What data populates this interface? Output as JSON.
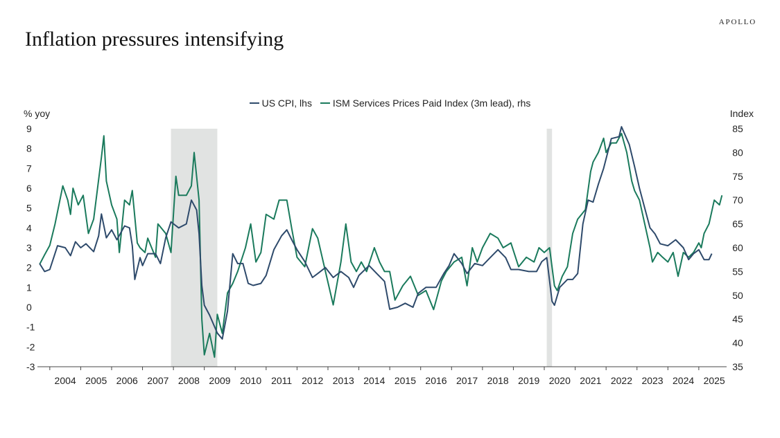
{
  "brand": "APOLLO",
  "title": "Inflation pressures intensifying",
  "chart_data": {
    "type": "line",
    "title": "Inflation pressures intensifying",
    "left_axis": {
      "label": "% yoy",
      "min": -3,
      "max": 9,
      "ticks": [
        -3,
        -2,
        -1,
        0,
        1,
        2,
        3,
        4,
        5,
        6,
        7,
        8,
        9
      ]
    },
    "right_axis": {
      "label": "Index",
      "min": 35,
      "max": 85,
      "ticks": [
        35,
        40,
        45,
        50,
        55,
        60,
        65,
        70,
        75,
        80,
        85
      ]
    },
    "x_axis": {
      "min": 2003.6,
      "max": 2025.9,
      "tick_labels": [
        "2004",
        "2005",
        "2006",
        "2007",
        "2008",
        "2009",
        "2010",
        "2011",
        "2012",
        "2013",
        "2014",
        "2015",
        "2016",
        "2017",
        "2018",
        "2019",
        "2020",
        "2021",
        "2022",
        "2023",
        "2024",
        "2025"
      ]
    },
    "grid": false,
    "legend_position": "top-center",
    "recessions": [
      {
        "start": 2007.92,
        "end": 2009.42
      },
      {
        "start": 2020.08,
        "end": 2020.25
      }
    ],
    "series": [
      {
        "name": "US CPI, lhs",
        "axis": "left",
        "color": "#2e4a6b",
        "points": [
          [
            2003.67,
            2.2
          ],
          [
            2003.83,
            1.8
          ],
          [
            2004.0,
            1.9
          ],
          [
            2004.25,
            3.1
          ],
          [
            2004.5,
            3.0
          ],
          [
            2004.67,
            2.6
          ],
          [
            2004.83,
            3.3
          ],
          [
            2005.0,
            3.0
          ],
          [
            2005.17,
            3.2
          ],
          [
            2005.42,
            2.8
          ],
          [
            2005.58,
            3.6
          ],
          [
            2005.67,
            4.7
          ],
          [
            2005.83,
            3.5
          ],
          [
            2006.0,
            3.9
          ],
          [
            2006.17,
            3.4
          ],
          [
            2006.42,
            4.1
          ],
          [
            2006.58,
            4.0
          ],
          [
            2006.67,
            3.1
          ],
          [
            2006.75,
            1.4
          ],
          [
            2006.92,
            2.5
          ],
          [
            2007.0,
            2.1
          ],
          [
            2007.17,
            2.7
          ],
          [
            2007.42,
            2.7
          ],
          [
            2007.58,
            2.2
          ],
          [
            2007.75,
            3.5
          ],
          [
            2007.92,
            4.3
          ],
          [
            2008.17,
            4.0
          ],
          [
            2008.42,
            4.2
          ],
          [
            2008.58,
            5.4
          ],
          [
            2008.75,
            4.9
          ],
          [
            2008.83,
            3.7
          ],
          [
            2008.92,
            1.1
          ],
          [
            2009.0,
            0.1
          ],
          [
            2009.17,
            -0.4
          ],
          [
            2009.42,
            -1.3
          ],
          [
            2009.58,
            -1.6
          ],
          [
            2009.75,
            -0.2
          ],
          [
            2009.92,
            2.7
          ],
          [
            2010.08,
            2.2
          ],
          [
            2010.25,
            2.2
          ],
          [
            2010.42,
            1.2
          ],
          [
            2010.58,
            1.1
          ],
          [
            2010.83,
            1.2
          ],
          [
            2011.0,
            1.6
          ],
          [
            2011.25,
            2.9
          ],
          [
            2011.5,
            3.6
          ],
          [
            2011.67,
            3.9
          ],
          [
            2011.83,
            3.4
          ],
          [
            2012.0,
            2.9
          ],
          [
            2012.25,
            2.3
          ],
          [
            2012.5,
            1.5
          ],
          [
            2012.67,
            1.7
          ],
          [
            2012.92,
            2.0
          ],
          [
            2013.17,
            1.5
          ],
          [
            2013.42,
            1.8
          ],
          [
            2013.67,
            1.5
          ],
          [
            2013.83,
            1.0
          ],
          [
            2014.0,
            1.6
          ],
          [
            2014.33,
            2.1
          ],
          [
            2014.58,
            1.7
          ],
          [
            2014.83,
            1.3
          ],
          [
            2015.0,
            -0.1
          ],
          [
            2015.25,
            0.0
          ],
          [
            2015.5,
            0.2
          ],
          [
            2015.75,
            0.0
          ],
          [
            2015.92,
            0.7
          ],
          [
            2016.17,
            1.0
          ],
          [
            2016.5,
            1.0
          ],
          [
            2016.75,
            1.7
          ],
          [
            2016.92,
            2.1
          ],
          [
            2017.08,
            2.7
          ],
          [
            2017.33,
            2.2
          ],
          [
            2017.5,
            1.7
          ],
          [
            2017.75,
            2.2
          ],
          [
            2018.0,
            2.1
          ],
          [
            2018.25,
            2.5
          ],
          [
            2018.5,
            2.9
          ],
          [
            2018.75,
            2.5
          ],
          [
            2018.92,
            1.9
          ],
          [
            2019.17,
            1.9
          ],
          [
            2019.5,
            1.8
          ],
          [
            2019.75,
            1.8
          ],
          [
            2019.92,
            2.3
          ],
          [
            2020.08,
            2.5
          ],
          [
            2020.25,
            0.3
          ],
          [
            2020.33,
            0.1
          ],
          [
            2020.5,
            1.0
          ],
          [
            2020.75,
            1.4
          ],
          [
            2020.92,
            1.4
          ],
          [
            2021.08,
            1.7
          ],
          [
            2021.25,
            4.2
          ],
          [
            2021.42,
            5.4
          ],
          [
            2021.58,
            5.3
          ],
          [
            2021.75,
            6.2
          ],
          [
            2021.92,
            7.0
          ],
          [
            2022.17,
            8.5
          ],
          [
            2022.42,
            8.6
          ],
          [
            2022.5,
            9.1
          ],
          [
            2022.75,
            8.2
          ],
          [
            2022.92,
            7.1
          ],
          [
            2023.08,
            6.0
          ],
          [
            2023.25,
            5.0
          ],
          [
            2023.42,
            4.0
          ],
          [
            2023.58,
            3.7
          ],
          [
            2023.75,
            3.2
          ],
          [
            2024.0,
            3.1
          ],
          [
            2024.25,
            3.4
          ],
          [
            2024.5,
            3.0
          ],
          [
            2024.67,
            2.4
          ],
          [
            2024.83,
            2.7
          ],
          [
            2025.0,
            2.9
          ],
          [
            2025.17,
            2.4
          ],
          [
            2025.33,
            2.4
          ],
          [
            2025.42,
            2.7
          ]
        ]
      },
      {
        "name": "ISM Services Prices Paid Index (3m lead), rhs",
        "axis": "right",
        "color": "#1a7a5c",
        "points": [
          [
            2003.67,
            56.5
          ],
          [
            2003.83,
            58.5
          ],
          [
            2004.0,
            60.5
          ],
          [
            2004.17,
            65
          ],
          [
            2004.42,
            73
          ],
          [
            2004.58,
            70
          ],
          [
            2004.67,
            67
          ],
          [
            2004.75,
            72.5
          ],
          [
            2004.92,
            69
          ],
          [
            2005.08,
            71
          ],
          [
            2005.25,
            63
          ],
          [
            2005.42,
            66
          ],
          [
            2005.67,
            79
          ],
          [
            2005.75,
            83.5
          ],
          [
            2005.83,
            74
          ],
          [
            2006.0,
            69
          ],
          [
            2006.17,
            66
          ],
          [
            2006.25,
            59
          ],
          [
            2006.42,
            70
          ],
          [
            2006.58,
            69
          ],
          [
            2006.67,
            72
          ],
          [
            2006.83,
            61
          ],
          [
            2006.92,
            60
          ],
          [
            2007.08,
            59
          ],
          [
            2007.17,
            62
          ],
          [
            2007.42,
            58
          ],
          [
            2007.5,
            65
          ],
          [
            2007.75,
            63
          ],
          [
            2007.92,
            59
          ],
          [
            2008.08,
            75
          ],
          [
            2008.17,
            71
          ],
          [
            2008.42,
            71
          ],
          [
            2008.58,
            73
          ],
          [
            2008.67,
            80
          ],
          [
            2008.83,
            70
          ],
          [
            2008.92,
            45
          ],
          [
            2009.0,
            37.5
          ],
          [
            2009.17,
            42
          ],
          [
            2009.33,
            37
          ],
          [
            2009.42,
            46
          ],
          [
            2009.58,
            42
          ],
          [
            2009.75,
            50.5
          ],
          [
            2009.92,
            52.5
          ],
          [
            2010.08,
            55
          ],
          [
            2010.33,
            60
          ],
          [
            2010.5,
            65
          ],
          [
            2010.67,
            57
          ],
          [
            2010.83,
            59
          ],
          [
            2011.0,
            67
          ],
          [
            2011.25,
            66
          ],
          [
            2011.42,
            70
          ],
          [
            2011.67,
            70
          ],
          [
            2011.83,
            64
          ],
          [
            2012.0,
            58
          ],
          [
            2012.25,
            56
          ],
          [
            2012.5,
            64
          ],
          [
            2012.67,
            62
          ],
          [
            2012.92,
            55
          ],
          [
            2013.17,
            48
          ],
          [
            2013.42,
            57
          ],
          [
            2013.58,
            65
          ],
          [
            2013.75,
            57
          ],
          [
            2013.92,
            55
          ],
          [
            2014.08,
            57
          ],
          [
            2014.25,
            55
          ],
          [
            2014.5,
            60
          ],
          [
            2014.67,
            57
          ],
          [
            2014.83,
            55
          ],
          [
            2015.0,
            55
          ],
          [
            2015.17,
            49
          ],
          [
            2015.42,
            52
          ],
          [
            2015.67,
            54
          ],
          [
            2015.92,
            50
          ],
          [
            2016.17,
            51
          ],
          [
            2016.42,
            47
          ],
          [
            2016.67,
            53
          ],
          [
            2016.83,
            55
          ],
          [
            2017.08,
            57
          ],
          [
            2017.33,
            58
          ],
          [
            2017.5,
            52
          ],
          [
            2017.67,
            60
          ],
          [
            2017.83,
            57
          ],
          [
            2018.0,
            60
          ],
          [
            2018.25,
            63
          ],
          [
            2018.5,
            62
          ],
          [
            2018.67,
            60
          ],
          [
            2018.92,
            61
          ],
          [
            2019.17,
            56
          ],
          [
            2019.42,
            58
          ],
          [
            2019.67,
            57
          ],
          [
            2019.83,
            60
          ],
          [
            2020.0,
            59
          ],
          [
            2020.17,
            60
          ],
          [
            2020.33,
            52
          ],
          [
            2020.42,
            51
          ],
          [
            2020.58,
            54
          ],
          [
            2020.75,
            56
          ],
          [
            2020.92,
            63
          ],
          [
            2021.08,
            66
          ],
          [
            2021.33,
            68
          ],
          [
            2021.5,
            76
          ],
          [
            2021.58,
            78
          ],
          [
            2021.75,
            80
          ],
          [
            2021.92,
            83
          ],
          [
            2022.0,
            80
          ],
          [
            2022.17,
            82
          ],
          [
            2022.33,
            82
          ],
          [
            2022.5,
            84
          ],
          [
            2022.67,
            80
          ],
          [
            2022.83,
            74
          ],
          [
            2022.92,
            72
          ],
          [
            2023.08,
            70
          ],
          [
            2023.25,
            65
          ],
          [
            2023.42,
            60
          ],
          [
            2023.5,
            57
          ],
          [
            2023.67,
            59
          ],
          [
            2023.83,
            58
          ],
          [
            2024.0,
            57
          ],
          [
            2024.17,
            59
          ],
          [
            2024.33,
            54
          ],
          [
            2024.5,
            59
          ],
          [
            2024.67,
            58
          ],
          [
            2024.83,
            59
          ],
          [
            2025.0,
            61
          ],
          [
            2025.08,
            60
          ],
          [
            2025.17,
            63
          ],
          [
            2025.33,
            65
          ],
          [
            2025.5,
            70
          ],
          [
            2025.67,
            69
          ],
          [
            2025.75,
            71
          ]
        ]
      }
    ]
  }
}
